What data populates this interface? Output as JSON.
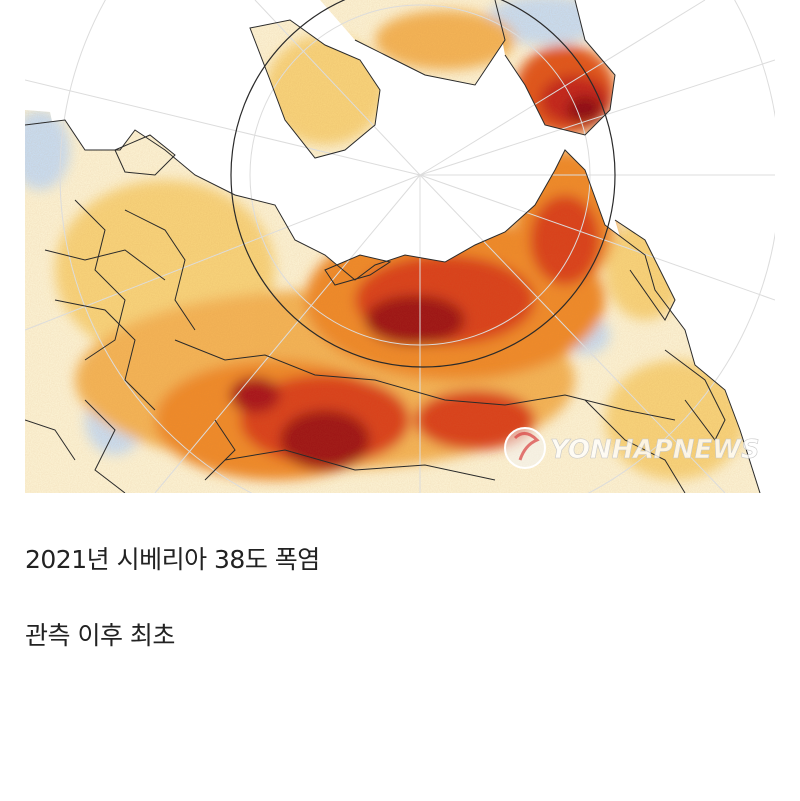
{
  "map": {
    "watermark": "YONHAPNEWS",
    "colors": {
      "ocean": "#ffffff",
      "cool": "#c9dcef",
      "neutral": "#fbf1d2",
      "warm": "#f7d27a",
      "hot": "#ee8a2a",
      "hotter": "#d9431a",
      "extreme": "#9e1218",
      "border": "#2a2a2a",
      "graticule": "#dcdcdc"
    }
  },
  "captions": {
    "line1": "2021년 시베리아 38도 폭염",
    "line2": "관측 이후 최초"
  }
}
